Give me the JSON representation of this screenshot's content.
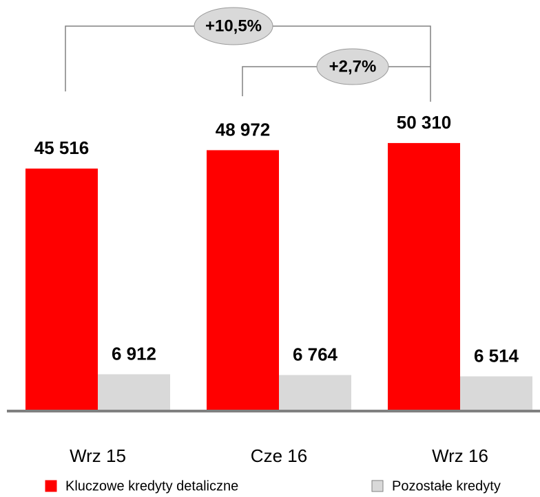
{
  "chart_data": {
    "type": "bar",
    "categories": [
      "Wrz 15",
      "Cze 16",
      "Wrz 16"
    ],
    "series": [
      {
        "name": "Kluczowe kredyty detaliczne",
        "color": "#ff0000",
        "values": [
          45516,
          48972,
          50310
        ],
        "value_labels": [
          "45 516",
          "48 972",
          "50 310"
        ]
      },
      {
        "name": "Pozostałe kredyty",
        "color": "#d9d9d9",
        "values": [
          6912,
          6764,
          6514
        ],
        "value_labels": [
          "6 912",
          "6 764",
          "6 514"
        ]
      }
    ],
    "ylim": [
      0,
      60000
    ],
    "annotations": [
      {
        "text": "+10,5%"
      },
      {
        "text": "+2,7%"
      }
    ]
  }
}
